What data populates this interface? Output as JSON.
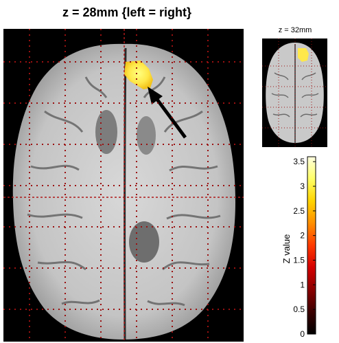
{
  "main_title": "z = 28mm {left = right}",
  "inset_title": "z = 32mm",
  "colorbar": {
    "label": "Z value",
    "ticks": [
      "3.5",
      "3",
      "2.5",
      "2",
      "1.5",
      "1",
      "0.5",
      "0"
    ],
    "range": [
      0,
      3.6
    ],
    "colors": [
      "#000000",
      "#3b0000",
      "#8a0000",
      "#d40000",
      "#ff3a00",
      "#ff8f00",
      "#ffd400",
      "#ffff66",
      "#ffffe0"
    ]
  },
  "overlay_color": "#ffe84a"
}
